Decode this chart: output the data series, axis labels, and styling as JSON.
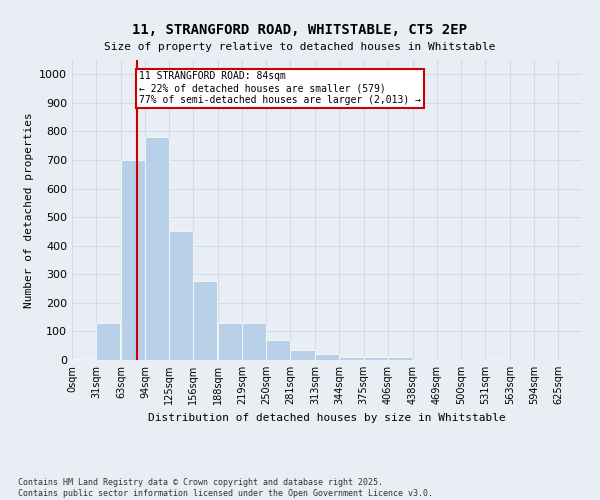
{
  "title_line1": "11, STRANGFORD ROAD, WHITSTABLE, CT5 2EP",
  "title_line2": "Size of property relative to detached houses in Whitstable",
  "xlabel": "Distribution of detached houses by size in Whitstable",
  "ylabel": "Number of detached properties",
  "footer_line1": "Contains HM Land Registry data © Crown copyright and database right 2025.",
  "footer_line2": "Contains public sector information licensed under the Open Government Licence v3.0.",
  "bar_labels": [
    "0sqm",
    "31sqm",
    "63sqm",
    "94sqm",
    "125sqm",
    "156sqm",
    "188sqm",
    "219sqm",
    "250sqm",
    "281sqm",
    "313sqm",
    "344sqm",
    "375sqm",
    "406sqm",
    "438sqm",
    "469sqm",
    "500sqm",
    "531sqm",
    "563sqm",
    "594sqm",
    "625sqm"
  ],
  "bar_values": [
    5,
    128,
    700,
    780,
    450,
    275,
    130,
    130,
    70,
    35,
    20,
    10,
    10,
    10,
    0,
    0,
    0,
    5,
    0,
    0,
    0
  ],
  "bar_color": "#b8cfe8",
  "grid_color": "#d0dce8",
  "bg_color": "#e8eef4",
  "vline_x": 84,
  "vline_color": "#cc0000",
  "annotation_text": "11 STRANGFORD ROAD: 84sqm\n← 22% of detached houses are smaller (579)\n77% of semi-detached houses are larger (2,013) →",
  "annotation_border_color": "#cc0000",
  "ylim": [
    0,
    1050
  ],
  "yticks": [
    0,
    100,
    200,
    300,
    400,
    500,
    600,
    700,
    800,
    900,
    1000
  ],
  "x_starts": [
    0,
    31,
    63,
    94,
    125,
    156,
    188,
    219,
    250,
    281,
    313,
    344,
    375,
    406,
    438,
    469,
    500,
    531,
    563,
    594,
    625
  ],
  "bin_width": 31
}
